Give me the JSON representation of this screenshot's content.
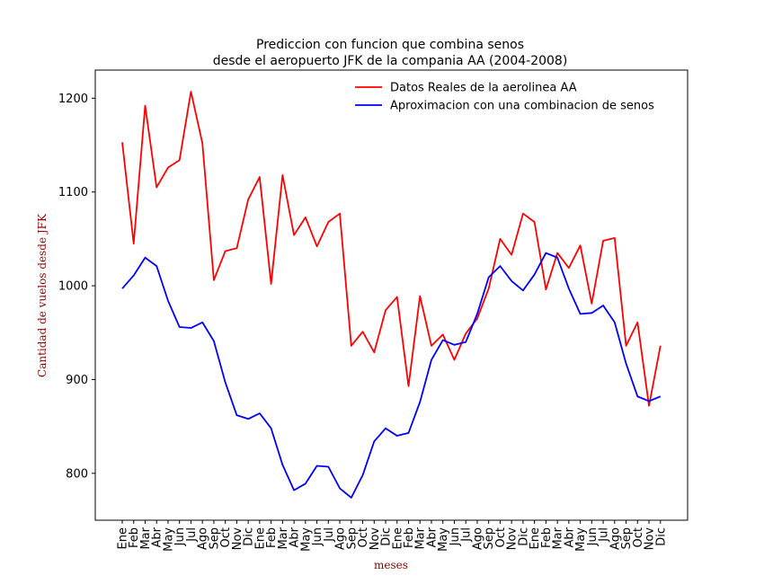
{
  "chart_data": {
    "type": "line",
    "title_line1": "Prediccion con funcion que combina senos",
    "title_line2": "desde el aeropuerto JFK de la compania AA (2004-2008)",
    "xlabel": "meses",
    "ylabel": "Cantidad de vuelos desde JFK",
    "ylim": [
      750,
      1230
    ],
    "yticks": [
      800,
      900,
      1000,
      1100,
      1200
    ],
    "grid": false,
    "legend_position": "top-right",
    "categories": [
      "Ene",
      "Feb",
      "Mar",
      "Abr",
      "May",
      "Jun",
      "Jul",
      "Ago",
      "Sep",
      "Oct",
      "Nov",
      "Dic",
      "Ene",
      "Feb",
      "Mar",
      "Abr",
      "May",
      "Jun",
      "Jul",
      "Ago",
      "Sep",
      "Oct",
      "Nov",
      "Dic",
      "Ene",
      "Feb",
      "Mar",
      "Abr",
      "May",
      "Jun",
      "Jul",
      "Ago",
      "Sep",
      "Oct",
      "Nov",
      "Dic",
      "Ene",
      "Feb",
      "Mar",
      "Abr",
      "May",
      "Jun",
      "Jul",
      "Ago",
      "Sep",
      "Oct",
      "Nov",
      "Dic"
    ],
    "series": [
      {
        "name": "Datos Reales de la aerolinea AA",
        "color": "#ff0000",
        "values": [
          1153,
          1045,
          1192,
          1105,
          1126,
          1134,
          1207,
          1152,
          1006,
          1037,
          1040,
          1092,
          1116,
          1002,
          1118,
          1054,
          1073,
          1042,
          1068,
          1077,
          936,
          951,
          929,
          974,
          988,
          893,
          989,
          936,
          948,
          921,
          949,
          965,
          997,
          1050,
          1033,
          1077,
          1068,
          996,
          1035,
          1019,
          1043,
          981,
          1048,
          1051,
          936,
          961,
          872,
          936
        ]
      },
      {
        "name": "Aproximacion con una combinacion de senos",
        "color": "#0000ff",
        "values": [
          997,
          1011,
          1030,
          1021,
          984,
          956,
          955,
          961,
          941,
          897,
          862,
          858,
          864,
          848,
          809,
          782,
          789,
          808,
          807,
          784,
          774,
          798,
          834,
          848,
          840,
          843,
          876,
          921,
          942,
          937,
          940,
          970,
          1009,
          1021,
          1005,
          995,
          1012,
          1035,
          1030,
          997,
          970,
          971,
          979,
          961,
          917,
          882,
          877,
          882
        ]
      }
    ]
  }
}
